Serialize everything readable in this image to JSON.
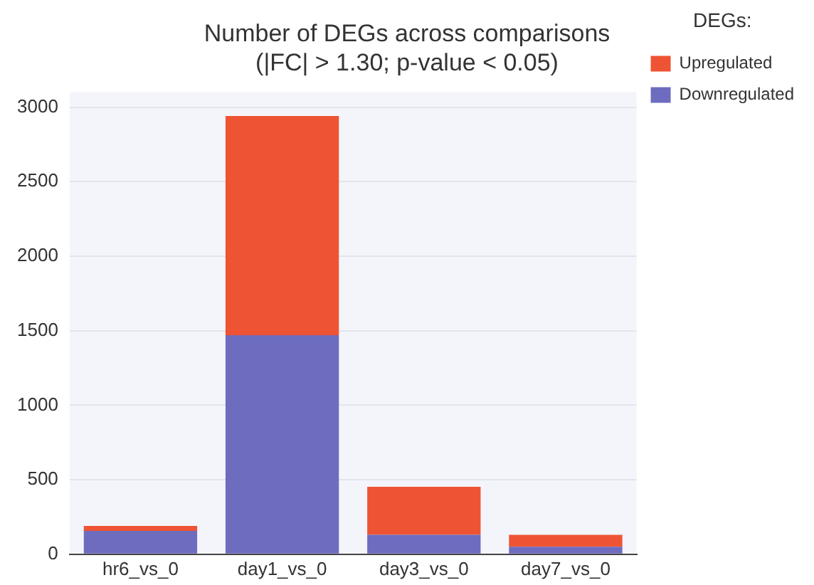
{
  "chart_data": {
    "type": "bar",
    "title": "Number of DEGs across comparisons",
    "subtitle": "(|FC| > 1.30; p-value < 0.05)",
    "legend_title": "DEGs:",
    "categories": [
      "hr6_vs_0",
      "day1_vs_0",
      "day3_vs_0",
      "day7_vs_0"
    ],
    "stacked": true,
    "series": [
      {
        "name": "Downregulated",
        "color": "#6d6cbf",
        "values": [
          157,
          1470,
          130,
          50
        ]
      },
      {
        "name": "Upregulated",
        "color": "#ee5433",
        "values": [
          33,
          1470,
          323,
          80
        ]
      }
    ],
    "ylim": [
      0,
      3100
    ],
    "yticks": [
      0,
      500,
      1000,
      1500,
      2000,
      2500,
      3000
    ],
    "grid": "y",
    "legend": "right"
  }
}
